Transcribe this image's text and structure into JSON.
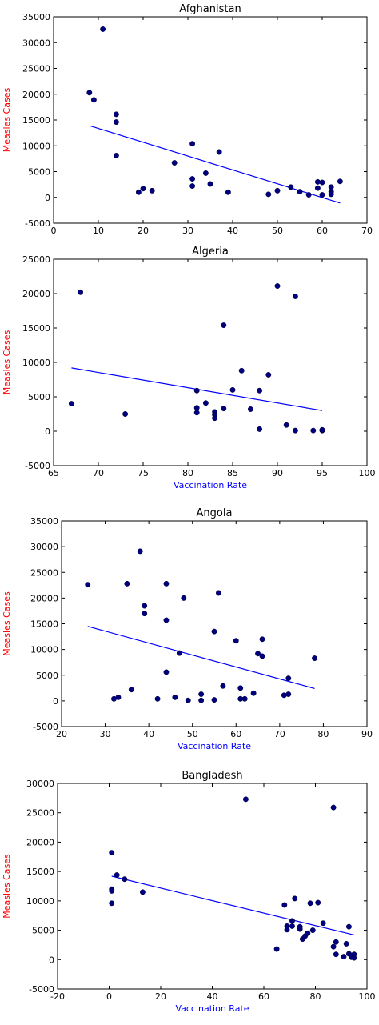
{
  "colors": {
    "point": "#00007f",
    "regression_line": "#0000ff",
    "ylabel": "#ff0000",
    "xlabel": "#0000ff",
    "axes": "#000000"
  },
  "chart_data": [
    {
      "type": "scatter",
      "title": "Afghanistan",
      "xlabel": "",
      "ylabel": "Measles Cases",
      "xlim": [
        0,
        70
      ],
      "ylim": [
        -5000,
        35000
      ],
      "xticks": [
        0,
        10,
        20,
        30,
        40,
        50,
        60,
        70
      ],
      "yticks": [
        -5000,
        0,
        5000,
        10000,
        15000,
        20000,
        25000,
        30000,
        35000
      ],
      "points": [
        [
          8,
          20300
        ],
        [
          9,
          18900
        ],
        [
          11,
          32600
        ],
        [
          14,
          16100
        ],
        [
          14,
          14600
        ],
        [
          14,
          8100
        ],
        [
          19,
          1000
        ],
        [
          20,
          1700
        ],
        [
          22,
          1300
        ],
        [
          27,
          6700
        ],
        [
          31,
          10400
        ],
        [
          31,
          3600
        ],
        [
          31,
          2200
        ],
        [
          34,
          4700
        ],
        [
          35,
          2600
        ],
        [
          37,
          8800
        ],
        [
          39,
          1000
        ],
        [
          48,
          600
        ],
        [
          50,
          1300
        ],
        [
          53,
          2000
        ],
        [
          55,
          1100
        ],
        [
          57,
          500
        ],
        [
          59,
          3000
        ],
        [
          59,
          1800
        ],
        [
          60,
          500
        ],
        [
          60,
          2900
        ],
        [
          62,
          2000
        ],
        [
          62,
          1100
        ],
        [
          62,
          600
        ],
        [
          64,
          3100
        ]
      ],
      "regression": {
        "x": [
          8,
          64
        ],
        "y": [
          13900,
          -1100
        ]
      },
      "grid": false
    },
    {
      "type": "scatter",
      "title": "Algeria",
      "xlabel": "Vaccination Rate",
      "ylabel": "Measles Cases",
      "xlim": [
        65,
        100
      ],
      "ylim": [
        -5000,
        25000
      ],
      "xticks": [
        65,
        70,
        75,
        80,
        85,
        90,
        95,
        100
      ],
      "yticks": [
        -5000,
        0,
        5000,
        10000,
        15000,
        20000,
        25000
      ],
      "points": [
        [
          67,
          4000
        ],
        [
          68,
          20200
        ],
        [
          73,
          2500
        ],
        [
          81,
          5900
        ],
        [
          81,
          3400
        ],
        [
          81,
          2700
        ],
        [
          82,
          4100
        ],
        [
          83,
          2800
        ],
        [
          83,
          2400
        ],
        [
          83,
          1900
        ],
        [
          84,
          15400
        ],
        [
          84,
          3300
        ],
        [
          85,
          6000
        ],
        [
          86,
          8800
        ],
        [
          87,
          3200
        ],
        [
          88,
          5900
        ],
        [
          88,
          300
        ],
        [
          89,
          8200
        ],
        [
          90,
          21100
        ],
        [
          91,
          900
        ],
        [
          92,
          19600
        ],
        [
          92,
          100
        ],
        [
          94,
          100
        ],
        [
          95,
          100
        ],
        [
          95,
          200
        ]
      ],
      "regression": {
        "x": [
          67,
          95
        ],
        "y": [
          9200,
          3000
        ]
      },
      "grid": false
    },
    {
      "type": "scatter",
      "title": "Angola",
      "xlabel": "Vaccination Rate",
      "ylabel": "Measles Cases",
      "xlim": [
        20,
        90
      ],
      "ylim": [
        -5000,
        35000
      ],
      "xticks": [
        20,
        30,
        40,
        50,
        60,
        70,
        80,
        90
      ],
      "yticks": [
        -5000,
        0,
        5000,
        10000,
        15000,
        20000,
        25000,
        30000,
        35000
      ],
      "points": [
        [
          26,
          22600
        ],
        [
          32,
          400
        ],
        [
          33,
          700
        ],
        [
          35,
          22800
        ],
        [
          36,
          2200
        ],
        [
          38,
          29100
        ],
        [
          39,
          18500
        ],
        [
          39,
          17000
        ],
        [
          42,
          400
        ],
        [
          44,
          22800
        ],
        [
          44,
          15700
        ],
        [
          44,
          5600
        ],
        [
          46,
          700
        ],
        [
          47,
          9300
        ],
        [
          48,
          20000
        ],
        [
          49,
          100
        ],
        [
          52,
          1300
        ],
        [
          52,
          100
        ],
        [
          55,
          13500
        ],
        [
          55,
          200
        ],
        [
          56,
          21000
        ],
        [
          57,
          2900
        ],
        [
          60,
          11700
        ],
        [
          61,
          2500
        ],
        [
          61,
          400
        ],
        [
          62,
          400
        ],
        [
          64,
          1500
        ],
        [
          65,
          9200
        ],
        [
          66,
          12000
        ],
        [
          66,
          8700
        ],
        [
          71,
          1100
        ],
        [
          72,
          1300
        ],
        [
          72,
          4400
        ],
        [
          78,
          8300
        ]
      ],
      "regression": {
        "x": [
          26,
          78
        ],
        "y": [
          14500,
          2400
        ]
      },
      "grid": false
    },
    {
      "type": "scatter",
      "title": "Bangladesh",
      "xlabel": "Vaccination Rate",
      "ylabel": "Measles Cases",
      "xlim": [
        -20,
        100
      ],
      "ylim": [
        -5000,
        30000
      ],
      "xticks": [
        -20,
        0,
        20,
        40,
        60,
        80,
        100
      ],
      "yticks": [
        -5000,
        0,
        5000,
        10000,
        15000,
        20000,
        25000,
        30000
      ],
      "points": [
        [
          1,
          18200
        ],
        [
          1,
          12000
        ],
        [
          1,
          11700
        ],
        [
          1,
          9600
        ],
        [
          3,
          14400
        ],
        [
          6,
          13700
        ],
        [
          13,
          11500
        ],
        [
          53,
          27300
        ],
        [
          65,
          1800
        ],
        [
          68,
          9300
        ],
        [
          69,
          5700
        ],
        [
          69,
          5100
        ],
        [
          71,
          6600
        ],
        [
          71,
          5700
        ],
        [
          72,
          10400
        ],
        [
          74,
          5600
        ],
        [
          74,
          5200
        ],
        [
          75,
          3500
        ],
        [
          76,
          4000
        ],
        [
          77,
          4500
        ],
        [
          78,
          9600
        ],
        [
          79,
          5000
        ],
        [
          81,
          9700
        ],
        [
          83,
          6200
        ],
        [
          87,
          25900
        ],
        [
          87,
          2200
        ],
        [
          88,
          3000
        ],
        [
          88,
          900
        ],
        [
          91,
          500
        ],
        [
          92,
          2700
        ],
        [
          93,
          5600
        ],
        [
          93,
          1000
        ],
        [
          94,
          700
        ],
        [
          94,
          400
        ],
        [
          95,
          900
        ],
        [
          95,
          300
        ]
      ],
      "regression": {
        "x": [
          1,
          95
        ],
        "y": [
          14200,
          4200
        ]
      },
      "grid": false
    }
  ]
}
